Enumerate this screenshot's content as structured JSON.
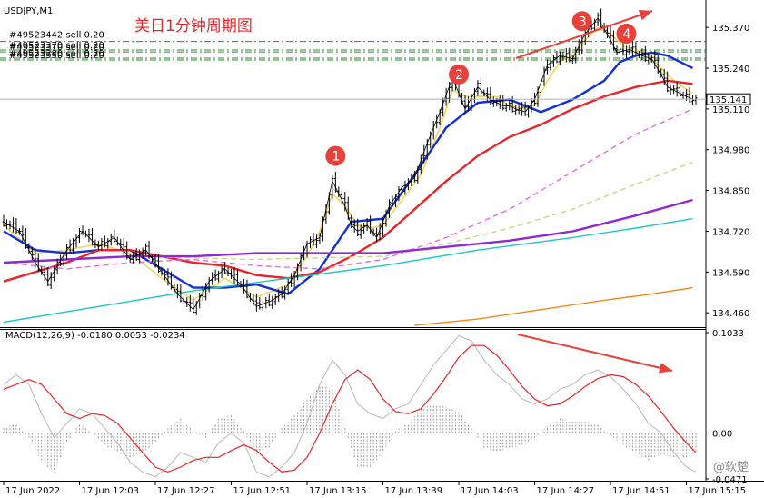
{
  "window": {
    "symbol_label": "USDJPY,M1",
    "annotation_title": "美日1分钟周期图",
    "watermark": "@软楚"
  },
  "orders": [
    {
      "label": "#49523442 sell 0.20",
      "price": 135.325
    },
    {
      "label": "#49523370 sell 0.20",
      "price": 135.298
    },
    {
      "label": "#49523370 sell 0.20",
      "price": 135.292
    },
    {
      "label": "#49523380 sell 0.20",
      "price": 135.272
    },
    {
      "label": "#49523550 sell 0.20",
      "price": 135.266
    }
  ],
  "chart_data": [
    {
      "type": "line",
      "name": "price",
      "ylim": [
        134.42,
        135.44
      ],
      "y_ticks": [
        135.37,
        135.24,
        135.11,
        134.98,
        134.85,
        134.72,
        134.59,
        134.46
      ],
      "y_tick_labels": [
        "135.370",
        "135.240",
        "135.110",
        "134.980",
        "134.850",
        "134.720",
        "134.590",
        "134.460"
      ],
      "x_tick_labels": [
        "17 Jun 2022",
        "17 Jun 12:03",
        "17 Jun 12:27",
        "17 Jun 12:51",
        "17 Jun 13:15",
        "17 Jun 13:39",
        "17 Jun 14:03",
        "17 Jun 14:27",
        "17 Jun 14:51",
        "17 Jun 15:15"
      ],
      "x_ticks": [
        0,
        24,
        48,
        72,
        96,
        120,
        144,
        168,
        192,
        216
      ],
      "x_range": [
        0,
        219
      ],
      "current_price": 135.141,
      "current_price_label": "135.141",
      "series": [
        {
          "role": "price",
          "color": "#000000",
          "x": [
            0,
            5,
            10,
            14,
            20,
            25,
            30,
            35,
            40,
            45,
            50,
            55,
            60,
            65,
            70,
            75,
            80,
            85,
            88,
            92,
            96,
            100,
            104,
            108,
            110,
            112,
            115,
            118,
            122,
            126,
            130,
            134,
            138,
            142,
            146,
            150,
            154,
            158,
            160,
            162,
            165,
            168,
            172,
            176,
            180,
            184,
            188,
            192,
            194,
            198,
            202,
            205,
            208,
            210,
            214,
            216,
            218
          ],
          "y": [
            134.75,
            134.72,
            134.62,
            134.56,
            134.66,
            134.72,
            134.67,
            134.7,
            134.63,
            134.66,
            134.59,
            134.52,
            134.47,
            134.56,
            134.6,
            134.55,
            134.48,
            134.5,
            134.52,
            134.58,
            134.68,
            134.7,
            134.88,
            134.8,
            134.74,
            134.72,
            134.74,
            134.7,
            134.8,
            134.86,
            134.89,
            135.0,
            135.1,
            135.21,
            135.11,
            135.18,
            135.14,
            135.12,
            135.12,
            135.11,
            135.1,
            135.14,
            135.25,
            135.28,
            135.27,
            135.35,
            135.4,
            135.33,
            135.29,
            135.3,
            135.28,
            135.27,
            135.22,
            135.18,
            135.16,
            135.15,
            135.141
          ]
        },
        {
          "role": "ma-yellow",
          "color": "#f2d34a",
          "x": [
            0,
            10,
            20,
            30,
            40,
            50,
            60,
            70,
            80,
            90,
            96,
            100,
            104,
            108,
            112,
            116,
            120,
            126,
            132,
            138,
            142,
            146,
            150,
            156,
            160,
            164,
            168,
            172,
            176,
            180,
            184,
            188,
            192,
            196,
            200,
            204,
            208,
            212,
            218
          ],
          "y": [
            134.74,
            134.65,
            134.66,
            134.68,
            134.65,
            134.57,
            134.5,
            134.57,
            134.51,
            134.55,
            134.64,
            134.72,
            134.84,
            134.8,
            134.74,
            134.73,
            134.74,
            134.82,
            134.9,
            135.05,
            135.17,
            135.15,
            135.15,
            135.15,
            135.12,
            135.11,
            135.12,
            135.2,
            135.26,
            135.28,
            135.33,
            135.37,
            135.35,
            135.31,
            135.3,
            135.28,
            135.24,
            135.2,
            135.16
          ]
        },
        {
          "role": "ma-blue",
          "color": "#1330d6",
          "x": [
            0,
            10,
            20,
            30,
            40,
            50,
            60,
            70,
            80,
            90,
            100,
            110,
            120,
            130,
            140,
            150,
            160,
            170,
            180,
            190,
            195,
            200,
            205,
            210,
            218
          ],
          "y": [
            134.72,
            134.66,
            134.65,
            134.66,
            134.66,
            134.6,
            134.54,
            134.54,
            134.55,
            134.52,
            134.6,
            134.75,
            134.76,
            134.9,
            135.05,
            135.13,
            135.14,
            135.1,
            135.14,
            135.2,
            135.26,
            135.28,
            135.29,
            135.28,
            135.24
          ]
        },
        {
          "role": "ma-red",
          "color": "#e8252b",
          "x": [
            0,
            10,
            20,
            30,
            40,
            50,
            60,
            70,
            80,
            90,
            100,
            110,
            120,
            130,
            140,
            150,
            160,
            170,
            180,
            190,
            200,
            210,
            218
          ],
          "y": [
            134.56,
            134.59,
            134.62,
            134.66,
            134.66,
            134.64,
            134.62,
            134.61,
            134.58,
            134.57,
            134.59,
            134.64,
            134.7,
            134.79,
            134.88,
            134.96,
            135.02,
            135.06,
            135.11,
            135.15,
            135.18,
            135.2,
            135.19
          ]
        },
        {
          "role": "ma-pink-dashed",
          "color": "#e070e0",
          "x": [
            0,
            20,
            40,
            60,
            80,
            100,
            120,
            140,
            160,
            180,
            200,
            218
          ],
          "y": [
            134.62,
            134.6,
            134.62,
            134.63,
            134.61,
            134.6,
            134.63,
            134.7,
            134.79,
            134.91,
            135.03,
            135.11
          ]
        },
        {
          "role": "ma-olive-dashed",
          "color": "#c8d88a",
          "x": [
            0,
            40,
            80,
            120,
            140,
            160,
            180,
            200,
            218
          ],
          "y": [
            134.62,
            134.64,
            134.63,
            134.64,
            134.68,
            134.73,
            134.79,
            134.87,
            134.94
          ]
        },
        {
          "role": "ma-purple",
          "color": "#8e2ad0",
          "x": [
            0,
            20,
            40,
            60,
            80,
            100,
            120,
            140,
            160,
            180,
            200,
            218
          ],
          "y": [
            134.62,
            134.63,
            134.64,
            134.64,
            134.65,
            134.65,
            134.65,
            134.67,
            134.69,
            134.72,
            134.77,
            134.82
          ]
        },
        {
          "role": "ma-cyan",
          "color": "#1fc6c6",
          "x": [
            0,
            30,
            60,
            90,
            120,
            150,
            180,
            200,
            218
          ],
          "y": [
            134.43,
            134.48,
            134.53,
            134.57,
            134.61,
            134.66,
            134.7,
            134.73,
            134.76
          ]
        },
        {
          "role": "ma-orange",
          "color": "#f08a1a",
          "x": [
            130,
            150,
            170,
            190,
            205,
            218
          ],
          "y": [
            134.42,
            134.44,
            134.47,
            134.5,
            134.52,
            134.54
          ]
        }
      ],
      "annotations": [
        {
          "label": "1",
          "x": 105,
          "y": 134.96
        },
        {
          "label": "2",
          "x": 144,
          "y": 135.22
        },
        {
          "label": "3",
          "x": 183,
          "y": 135.39
        },
        {
          "label": "4",
          "x": 197,
          "y": 135.35
        }
      ]
    },
    {
      "type": "line",
      "name": "macd",
      "title": "MACD(12,26,9) -0.0180 0.0053 -0.0234",
      "ylim": [
        -0.0471,
        0.1033
      ],
      "y_ticks": [
        0.1033,
        0.0,
        -0.0471
      ],
      "y_tick_labels": [
        "0.1033",
        "0.00",
        "-0.0471"
      ],
      "macd_line": {
        "color": "#b8b8b8",
        "x": [
          0,
          4,
          8,
          12,
          16,
          20,
          24,
          28,
          32,
          36,
          40,
          44,
          48,
          52,
          56,
          60,
          64,
          68,
          72,
          76,
          80,
          84,
          88,
          92,
          96,
          100,
          104,
          108,
          112,
          116,
          120,
          124,
          128,
          132,
          136,
          140,
          144,
          148,
          152,
          156,
          160,
          164,
          168,
          172,
          176,
          180,
          184,
          188,
          192,
          196,
          200,
          204,
          208,
          212,
          216,
          219
        ],
        "y": [
          0.05,
          0.06,
          0.05,
          0.02,
          -0.005,
          0.01,
          0.025,
          0.02,
          0.005,
          -0.01,
          -0.03,
          -0.04,
          -0.045,
          -0.035,
          -0.02,
          -0.025,
          -0.03,
          -0.01,
          0.0,
          -0.01,
          -0.04,
          -0.045,
          -0.035,
          -0.02,
          0.01,
          0.05,
          0.075,
          0.06,
          0.03,
          0.02,
          0.015,
          0.025,
          0.03,
          0.05,
          0.07,
          0.085,
          0.1,
          0.095,
          0.075,
          0.06,
          0.05,
          0.035,
          0.03,
          0.035,
          0.045,
          0.05,
          0.06,
          0.065,
          0.058,
          0.045,
          0.03,
          0.01,
          0.0,
          -0.02,
          -0.035,
          -0.04
        ]
      },
      "signal_line": {
        "color": "#e8252b",
        "x": [
          0,
          4,
          8,
          12,
          16,
          20,
          24,
          28,
          32,
          36,
          40,
          44,
          48,
          52,
          56,
          60,
          64,
          68,
          72,
          76,
          80,
          84,
          88,
          92,
          96,
          100,
          104,
          108,
          112,
          116,
          120,
          124,
          128,
          132,
          136,
          140,
          144,
          148,
          152,
          156,
          160,
          164,
          168,
          172,
          176,
          180,
          184,
          188,
          192,
          196,
          200,
          204,
          208,
          212,
          216,
          219
        ],
        "y": [
          0.045,
          0.05,
          0.055,
          0.05,
          0.035,
          0.02,
          0.015,
          0.02,
          0.018,
          0.01,
          -0.005,
          -0.02,
          -0.035,
          -0.04,
          -0.035,
          -0.028,
          -0.025,
          -0.025,
          -0.018,
          -0.012,
          -0.018,
          -0.03,
          -0.04,
          -0.038,
          -0.025,
          0.0,
          0.03,
          0.055,
          0.065,
          0.055,
          0.035,
          0.022,
          0.02,
          0.025,
          0.04,
          0.058,
          0.078,
          0.09,
          0.09,
          0.08,
          0.065,
          0.048,
          0.035,
          0.028,
          0.03,
          0.038,
          0.048,
          0.056,
          0.06,
          0.058,
          0.05,
          0.038,
          0.022,
          0.005,
          -0.01,
          -0.02
        ]
      }
    }
  ]
}
